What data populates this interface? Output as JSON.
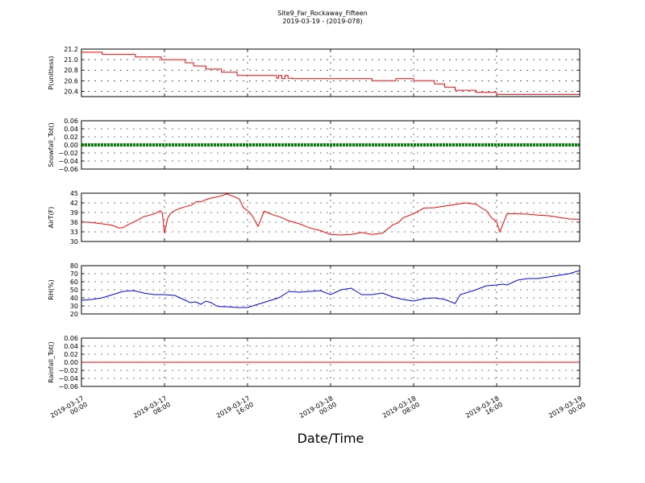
{
  "figure": {
    "title_line1": "Site9_Far_Rockaway_Fifteen",
    "title_line2": "2019-03-19 - (2019-078)",
    "xlabel": "Date/Time"
  },
  "chart_data": {
    "type": "line",
    "x_range": [
      "2019-03-17 00:00",
      "2019-03-19 00:00"
    ],
    "x_tick_labels": [
      [
        "2019-03-17",
        "00:00"
      ],
      [
        "2019-03-17",
        "08:00"
      ],
      [
        "2019-03-17",
        "16:00"
      ],
      [
        "2019-03-18",
        "00:00"
      ],
      [
        "2019-03-18",
        "08:00"
      ],
      [
        "2019-03-18",
        "16:00"
      ],
      [
        "2019-03-19",
        "00:00"
      ]
    ],
    "grid": true,
    "panels": [
      {
        "ylabel": "P(unitless)",
        "ylim": [
          20.3,
          21.2
        ],
        "yticks": [
          "21.2",
          "21.0",
          "20.8",
          "20.6",
          "20.4"
        ],
        "ytick_values": [
          21.2,
          21.0,
          20.8,
          20.6,
          20.4
        ],
        "color": "#ff0000",
        "style": "step-line",
        "x_hours": [
          0,
          1.7,
          2.0,
          5.0,
          5.2,
          7.5,
          7.7,
          9.2,
          10.0,
          10.8,
          12.0,
          13.5,
          15.0,
          18.5,
          18.8,
          19.0,
          19.3,
          19.6,
          19.9,
          20.3,
          21.0,
          27.0,
          28.0,
          30.0,
          30.3,
          32.0,
          33.0,
          34.0,
          35.0,
          36.0,
          38.0,
          40.0,
          44.0,
          48.0
        ],
        "values": [
          21.14,
          21.14,
          21.1,
          21.1,
          21.05,
          21.05,
          21.0,
          21.0,
          20.94,
          20.88,
          20.82,
          20.76,
          20.7,
          20.7,
          20.65,
          20.7,
          20.64,
          20.7,
          20.65,
          20.64,
          20.64,
          20.64,
          20.6,
          20.6,
          20.64,
          20.6,
          20.6,
          20.54,
          20.48,
          20.42,
          20.38,
          20.34,
          20.34,
          20.34
        ]
      },
      {
        "ylabel": "Snowfall_Tot()",
        "ylim": [
          -0.06,
          0.06
        ],
        "yticks": [
          "0.06",
          "0.04",
          "0.02",
          "0.00",
          "−0.02",
          "−0.04",
          "−0.06"
        ],
        "ytick_values": [
          0.06,
          0.04,
          0.02,
          0.0,
          -0.02,
          -0.04,
          -0.06
        ],
        "color": "#008000",
        "style": "thick-dots",
        "x_hours": [
          0,
          48
        ],
        "values": [
          0.0,
          0.0
        ]
      },
      {
        "ylabel": "AirT(F)",
        "ylim": [
          30,
          45
        ],
        "yticks": [
          "45",
          "42",
          "39",
          "36",
          "33",
          "30"
        ],
        "ytick_values": [
          45,
          42,
          39,
          36,
          33,
          30
        ],
        "color": "#ff0000",
        "style": "line",
        "x_hours": [
          0,
          1,
          2,
          3,
          3.6,
          4.0,
          4.6,
          5.4,
          6.0,
          6.6,
          7.2,
          7.6,
          7.8,
          8.0,
          8.3,
          8.6,
          9.0,
          9.5,
          10.0,
          10.6,
          11.1,
          11.6,
          12.0,
          12.5,
          13.0,
          13.5,
          14.0,
          14.4,
          14.8,
          15.2,
          15.6,
          16.0,
          16.5,
          17.0,
          17.3,
          17.6,
          18.0,
          18.5,
          19.0,
          19.5,
          20.0,
          21.0,
          22.0,
          23.0,
          24.0,
          25.0,
          26.0,
          27.0,
          28.0,
          29.0,
          30.0,
          30.5,
          31.0,
          32.0,
          33.0,
          34.0,
          35.0,
          36.0,
          37.0,
          38.0,
          38.5,
          39.0,
          39.5,
          40.0,
          40.3,
          41.0,
          42.0,
          43.0,
          44.0,
          45.0,
          46.0,
          47.0,
          48.0
        ],
        "values": [
          36.1,
          35.9,
          35.5,
          35.0,
          34.2,
          34.3,
          35.4,
          36.6,
          37.7,
          38.2,
          38.8,
          39.6,
          38.8,
          32.5,
          37.2,
          38.8,
          39.6,
          40.3,
          40.8,
          41.3,
          42.4,
          42.4,
          43.0,
          43.5,
          43.8,
          44.2,
          44.8,
          44.3,
          43.8,
          43.2,
          40.5,
          39.6,
          37.8,
          34.7,
          36.9,
          39.4,
          38.9,
          38.2,
          37.8,
          37.1,
          36.4,
          35.5,
          34.2,
          33.4,
          32.2,
          32.0,
          32.2,
          32.8,
          32.2,
          32.6,
          35.2,
          35.8,
          37.4,
          38.6,
          40.4,
          40.5,
          41.0,
          41.5,
          42.0,
          41.6,
          40.5,
          39.6,
          37.4,
          36.1,
          33.0,
          38.6,
          38.6,
          38.5,
          38.2,
          38.0,
          37.5,
          37.0,
          36.9
        ]
      },
      {
        "ylabel": "RH(%)",
        "ylim": [
          20,
          80
        ],
        "yticks": [
          "80",
          "70",
          "60",
          "50",
          "40",
          "30",
          "20"
        ],
        "ytick_values": [
          80,
          70,
          60,
          50,
          40,
          30,
          20
        ],
        "color": "#0000ff",
        "style": "line",
        "x_hours": [
          0,
          1,
          2,
          3,
          4,
          5,
          6,
          7,
          8,
          9,
          10,
          10.5,
          11,
          11.5,
          12,
          12.5,
          13,
          13.5,
          14,
          15,
          16,
          17,
          18,
          19,
          20,
          21,
          22,
          23,
          24,
          25,
          26,
          27,
          28,
          29,
          30,
          31,
          32,
          33,
          34,
          35,
          36,
          36.5,
          37,
          38,
          39,
          40,
          40.6,
          41,
          42,
          43,
          44,
          45,
          46,
          47,
          48
        ],
        "values": [
          37,
          38,
          40,
          44,
          48,
          49,
          46,
          44,
          44,
          43,
          37,
          34,
          35,
          32,
          36,
          34,
          30,
          29,
          29,
          28,
          28,
          32,
          36,
          40,
          48,
          47,
          48,
          49,
          44,
          50,
          52,
          44,
          44,
          46,
          41,
          38,
          36,
          39,
          40,
          38,
          33,
          44,
          46,
          50,
          55,
          56,
          57,
          56,
          62,
          64,
          64,
          66,
          68,
          70,
          74
        ]
      },
      {
        "ylabel": "Rainfall_Tot()",
        "ylim": [
          -0.06,
          0.06
        ],
        "yticks": [
          "0.06",
          "0.04",
          "0.02",
          "0.00",
          "−0.02",
          "−0.04",
          "−0.06"
        ],
        "ytick_values": [
          0.06,
          0.04,
          0.02,
          0.0,
          -0.02,
          -0.04,
          -0.06
        ],
        "color": "#ff0000",
        "style": "line",
        "x_hours": [
          0,
          48
        ],
        "values": [
          0.0,
          0.0
        ]
      }
    ]
  }
}
